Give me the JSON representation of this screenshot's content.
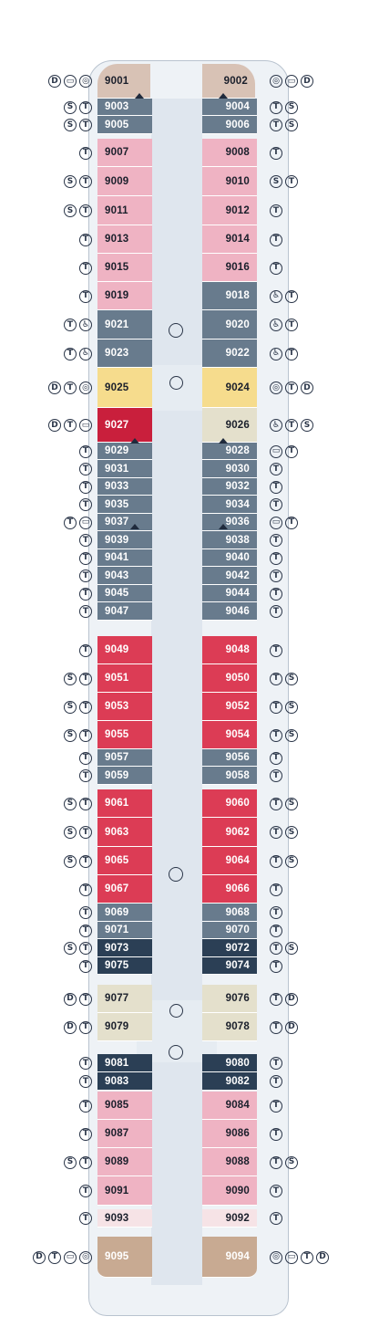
{
  "colors": {
    "pink": "#efb3c3",
    "slate": "#687b8d",
    "navy": "#2b3f55",
    "red": "#dc3c55",
    "crimson": "#c91f3c",
    "yellow": "#f6dc8d",
    "beige": "#e4e0cc",
    "taupe": "#c8aa92",
    "bow": "#d8c2b5",
    "lightpink": "#f6e3e6",
    "corridor": "#dfe6ee",
    "hull": "#eef2f6",
    "icon": "#2a3548"
  },
  "legend_glyphs": {
    "D": "D",
    "S": "S",
    "T": "T",
    "B": "▭",
    "W": "♿",
    "G": "◎"
  },
  "cabins": [
    {
      "num": "9001",
      "side": "L",
      "color": "bow",
      "icons": [
        "D",
        "B",
        "G"
      ]
    },
    {
      "num": "9002",
      "side": "R",
      "color": "bow",
      "icons": [
        "G",
        "B",
        "D"
      ]
    },
    {
      "num": "9003",
      "side": "L",
      "color": "slate",
      "icons": [
        "S",
        "T"
      ]
    },
    {
      "num": "9004",
      "side": "R",
      "color": "slate",
      "icons": [
        "T",
        "S"
      ]
    },
    {
      "num": "9005",
      "side": "L",
      "color": "slate",
      "icons": [
        "S",
        "T"
      ]
    },
    {
      "num": "9006",
      "side": "R",
      "color": "slate",
      "icons": [
        "T",
        "S"
      ]
    },
    {
      "num": "9007",
      "side": "L",
      "color": "pink",
      "icons": [
        "T"
      ]
    },
    {
      "num": "9008",
      "side": "R",
      "color": "pink",
      "icons": [
        "T"
      ]
    },
    {
      "num": "9009",
      "side": "L",
      "color": "pink",
      "icons": [
        "S",
        "T"
      ]
    },
    {
      "num": "9010",
      "side": "R",
      "color": "pink",
      "icons": [
        "S",
        "T"
      ]
    },
    {
      "num": "9011",
      "side": "L",
      "color": "pink",
      "icons": [
        "S",
        "T"
      ]
    },
    {
      "num": "9012",
      "side": "R",
      "color": "pink",
      "icons": [
        "T"
      ]
    },
    {
      "num": "9013",
      "side": "L",
      "color": "pink",
      "icons": [
        "T"
      ]
    },
    {
      "num": "9014",
      "side": "R",
      "color": "pink",
      "icons": [
        "T"
      ]
    },
    {
      "num": "9015",
      "side": "L",
      "color": "pink",
      "icons": [
        "T"
      ]
    },
    {
      "num": "9016",
      "side": "R",
      "color": "pink",
      "icons": [
        "T"
      ]
    },
    {
      "num": "9019",
      "side": "L",
      "color": "pink",
      "icons": [
        "T"
      ]
    },
    {
      "num": "9018",
      "side": "R",
      "color": "slate",
      "icons": [
        "W",
        "T"
      ]
    },
    {
      "num": "9021",
      "side": "L",
      "color": "slate",
      "icons": [
        "T",
        "W"
      ]
    },
    {
      "num": "9020",
      "side": "R",
      "color": "slate",
      "icons": [
        "W",
        "T"
      ]
    },
    {
      "num": "9023",
      "side": "L",
      "color": "slate",
      "icons": [
        "T",
        "W"
      ]
    },
    {
      "num": "9022",
      "side": "R",
      "color": "slate",
      "icons": [
        "W",
        "T"
      ]
    },
    {
      "num": "9025",
      "side": "L",
      "color": "yellow",
      "icons": [
        "D",
        "T",
        "G"
      ]
    },
    {
      "num": "9024",
      "side": "R",
      "color": "yellow",
      "icons": [
        "G",
        "T",
        "D"
      ]
    },
    {
      "num": "9027",
      "side": "L",
      "color": "crimson",
      "icons": [
        "D",
        "T",
        "B"
      ]
    },
    {
      "num": "9026",
      "side": "R",
      "color": "beige",
      "icons": [
        "W",
        "T",
        "S"
      ]
    },
    {
      "num": "9029",
      "side": "L",
      "color": "slate",
      "icons": [
        "T"
      ]
    },
    {
      "num": "9028",
      "side": "R",
      "color": "slate",
      "icons": [
        "B",
        "T"
      ]
    },
    {
      "num": "9031",
      "side": "L",
      "color": "slate",
      "icons": [
        "T"
      ]
    },
    {
      "num": "9030",
      "side": "R",
      "color": "slate",
      "icons": [
        "T"
      ]
    },
    {
      "num": "9033",
      "side": "L",
      "color": "slate",
      "icons": [
        "T"
      ]
    },
    {
      "num": "9032",
      "side": "R",
      "color": "slate",
      "icons": [
        "T"
      ]
    },
    {
      "num": "9035",
      "side": "L",
      "color": "slate",
      "icons": [
        "T"
      ]
    },
    {
      "num": "9034",
      "side": "R",
      "color": "slate",
      "icons": [
        "T"
      ]
    },
    {
      "num": "9037",
      "side": "L",
      "color": "slate",
      "icons": [
        "T",
        "B"
      ]
    },
    {
      "num": "9036",
      "side": "R",
      "color": "slate",
      "icons": [
        "B",
        "T"
      ]
    },
    {
      "num": "9039",
      "side": "L",
      "color": "slate",
      "icons": [
        "T"
      ]
    },
    {
      "num": "9038",
      "side": "R",
      "color": "slate",
      "icons": [
        "T"
      ]
    },
    {
      "num": "9041",
      "side": "L",
      "color": "slate",
      "icons": [
        "T"
      ]
    },
    {
      "num": "9040",
      "side": "R",
      "color": "slate",
      "icons": [
        "T"
      ]
    },
    {
      "num": "9043",
      "side": "L",
      "color": "slate",
      "icons": [
        "T"
      ]
    },
    {
      "num": "9042",
      "side": "R",
      "color": "slate",
      "icons": [
        "T"
      ]
    },
    {
      "num": "9045",
      "side": "L",
      "color": "slate",
      "icons": [
        "T"
      ]
    },
    {
      "num": "9044",
      "side": "R",
      "color": "slate",
      "icons": [
        "T"
      ]
    },
    {
      "num": "9047",
      "side": "L",
      "color": "slate",
      "icons": [
        "T"
      ]
    },
    {
      "num": "9046",
      "side": "R",
      "color": "slate",
      "icons": [
        "T"
      ]
    },
    {
      "num": "9049",
      "side": "L",
      "color": "red",
      "icons": [
        "T"
      ]
    },
    {
      "num": "9048",
      "side": "R",
      "color": "red",
      "icons": [
        "T"
      ]
    },
    {
      "num": "9051",
      "side": "L",
      "color": "red",
      "icons": [
        "S",
        "T"
      ]
    },
    {
      "num": "9050",
      "side": "R",
      "color": "red",
      "icons": [
        "T",
        "S"
      ]
    },
    {
      "num": "9053",
      "side": "L",
      "color": "red",
      "icons": [
        "S",
        "T"
      ]
    },
    {
      "num": "9052",
      "side": "R",
      "color": "red",
      "icons": [
        "T",
        "S"
      ]
    },
    {
      "num": "9055",
      "side": "L",
      "color": "red",
      "icons": [
        "S",
        "T"
      ]
    },
    {
      "num": "9054",
      "side": "R",
      "color": "red",
      "icons": [
        "T",
        "S"
      ]
    },
    {
      "num": "9057",
      "side": "L",
      "color": "slate",
      "icons": [
        "T"
      ]
    },
    {
      "num": "9056",
      "side": "R",
      "color": "slate",
      "icons": [
        "T"
      ]
    },
    {
      "num": "9059",
      "side": "L",
      "color": "slate",
      "icons": [
        "T"
      ]
    },
    {
      "num": "9058",
      "side": "R",
      "color": "slate",
      "icons": [
        "T"
      ]
    },
    {
      "num": "9061",
      "side": "L",
      "color": "red",
      "icons": [
        "S",
        "T"
      ]
    },
    {
      "num": "9060",
      "side": "R",
      "color": "red",
      "icons": [
        "T",
        "S"
      ]
    },
    {
      "num": "9063",
      "side": "L",
      "color": "red",
      "icons": [
        "S",
        "T"
      ]
    },
    {
      "num": "9062",
      "side": "R",
      "color": "red",
      "icons": [
        "T",
        "S"
      ]
    },
    {
      "num": "9065",
      "side": "L",
      "color": "red",
      "icons": [
        "S",
        "T"
      ]
    },
    {
      "num": "9064",
      "side": "R",
      "color": "red",
      "icons": [
        "T",
        "S"
      ]
    },
    {
      "num": "9067",
      "side": "L",
      "color": "red",
      "icons": [
        "T"
      ]
    },
    {
      "num": "9066",
      "side": "R",
      "color": "red",
      "icons": [
        "T"
      ]
    },
    {
      "num": "9069",
      "side": "L",
      "color": "slate",
      "icons": [
        "T"
      ]
    },
    {
      "num": "9068",
      "side": "R",
      "color": "slate",
      "icons": [
        "T"
      ]
    },
    {
      "num": "9071",
      "side": "L",
      "color": "slate",
      "icons": [
        "T"
      ]
    },
    {
      "num": "9070",
      "side": "R",
      "color": "slate",
      "icons": [
        "T"
      ]
    },
    {
      "num": "9073",
      "side": "L",
      "color": "navy",
      "icons": [
        "S",
        "T"
      ]
    },
    {
      "num": "9072",
      "side": "R",
      "color": "navy",
      "icons": [
        "T",
        "S"
      ]
    },
    {
      "num": "9075",
      "side": "L",
      "color": "navy",
      "icons": [
        "T"
      ]
    },
    {
      "num": "9074",
      "side": "R",
      "color": "navy",
      "icons": [
        "T"
      ]
    },
    {
      "num": "9077",
      "side": "L",
      "color": "beige",
      "icons": [
        "D",
        "T"
      ]
    },
    {
      "num": "9076",
      "side": "R",
      "color": "beige",
      "icons": [
        "T",
        "D"
      ]
    },
    {
      "num": "9079",
      "side": "L",
      "color": "beige",
      "icons": [
        "D",
        "T"
      ]
    },
    {
      "num": "9078",
      "side": "R",
      "color": "beige",
      "icons": [
        "T",
        "D"
      ]
    },
    {
      "num": "9081",
      "side": "L",
      "color": "navy",
      "icons": [
        "T"
      ]
    },
    {
      "num": "9080",
      "side": "R",
      "color": "navy",
      "icons": [
        "T"
      ]
    },
    {
      "num": "9083",
      "side": "L",
      "color": "navy",
      "icons": [
        "T"
      ]
    },
    {
      "num": "9082",
      "side": "R",
      "color": "navy",
      "icons": [
        "T"
      ]
    },
    {
      "num": "9085",
      "side": "L",
      "color": "pink",
      "icons": [
        "T"
      ]
    },
    {
      "num": "9084",
      "side": "R",
      "color": "pink",
      "icons": [
        "T"
      ]
    },
    {
      "num": "9087",
      "side": "L",
      "color": "pink",
      "icons": [
        "T"
      ]
    },
    {
      "num": "9086",
      "side": "R",
      "color": "pink",
      "icons": [
        "T"
      ]
    },
    {
      "num": "9089",
      "side": "L",
      "color": "pink",
      "icons": [
        "S",
        "T"
      ]
    },
    {
      "num": "9088",
      "side": "R",
      "color": "pink",
      "icons": [
        "T",
        "S"
      ]
    },
    {
      "num": "9091",
      "side": "L",
      "color": "pink",
      "icons": [
        "T"
      ]
    },
    {
      "num": "9090",
      "side": "R",
      "color": "pink",
      "icons": [
        "T"
      ]
    },
    {
      "num": "9093",
      "side": "L",
      "color": "lightpink",
      "icons": [
        "T"
      ]
    },
    {
      "num": "9092",
      "side": "R",
      "color": "lightpink",
      "icons": [
        "T"
      ]
    },
    {
      "num": "9095",
      "side": "L",
      "color": "taupe",
      "icons": [
        "D",
        "T",
        "B",
        "G"
      ]
    },
    {
      "num": "9094",
      "side": "R",
      "color": "taupe",
      "icons": [
        "G",
        "B",
        "T",
        "D"
      ]
    }
  ]
}
